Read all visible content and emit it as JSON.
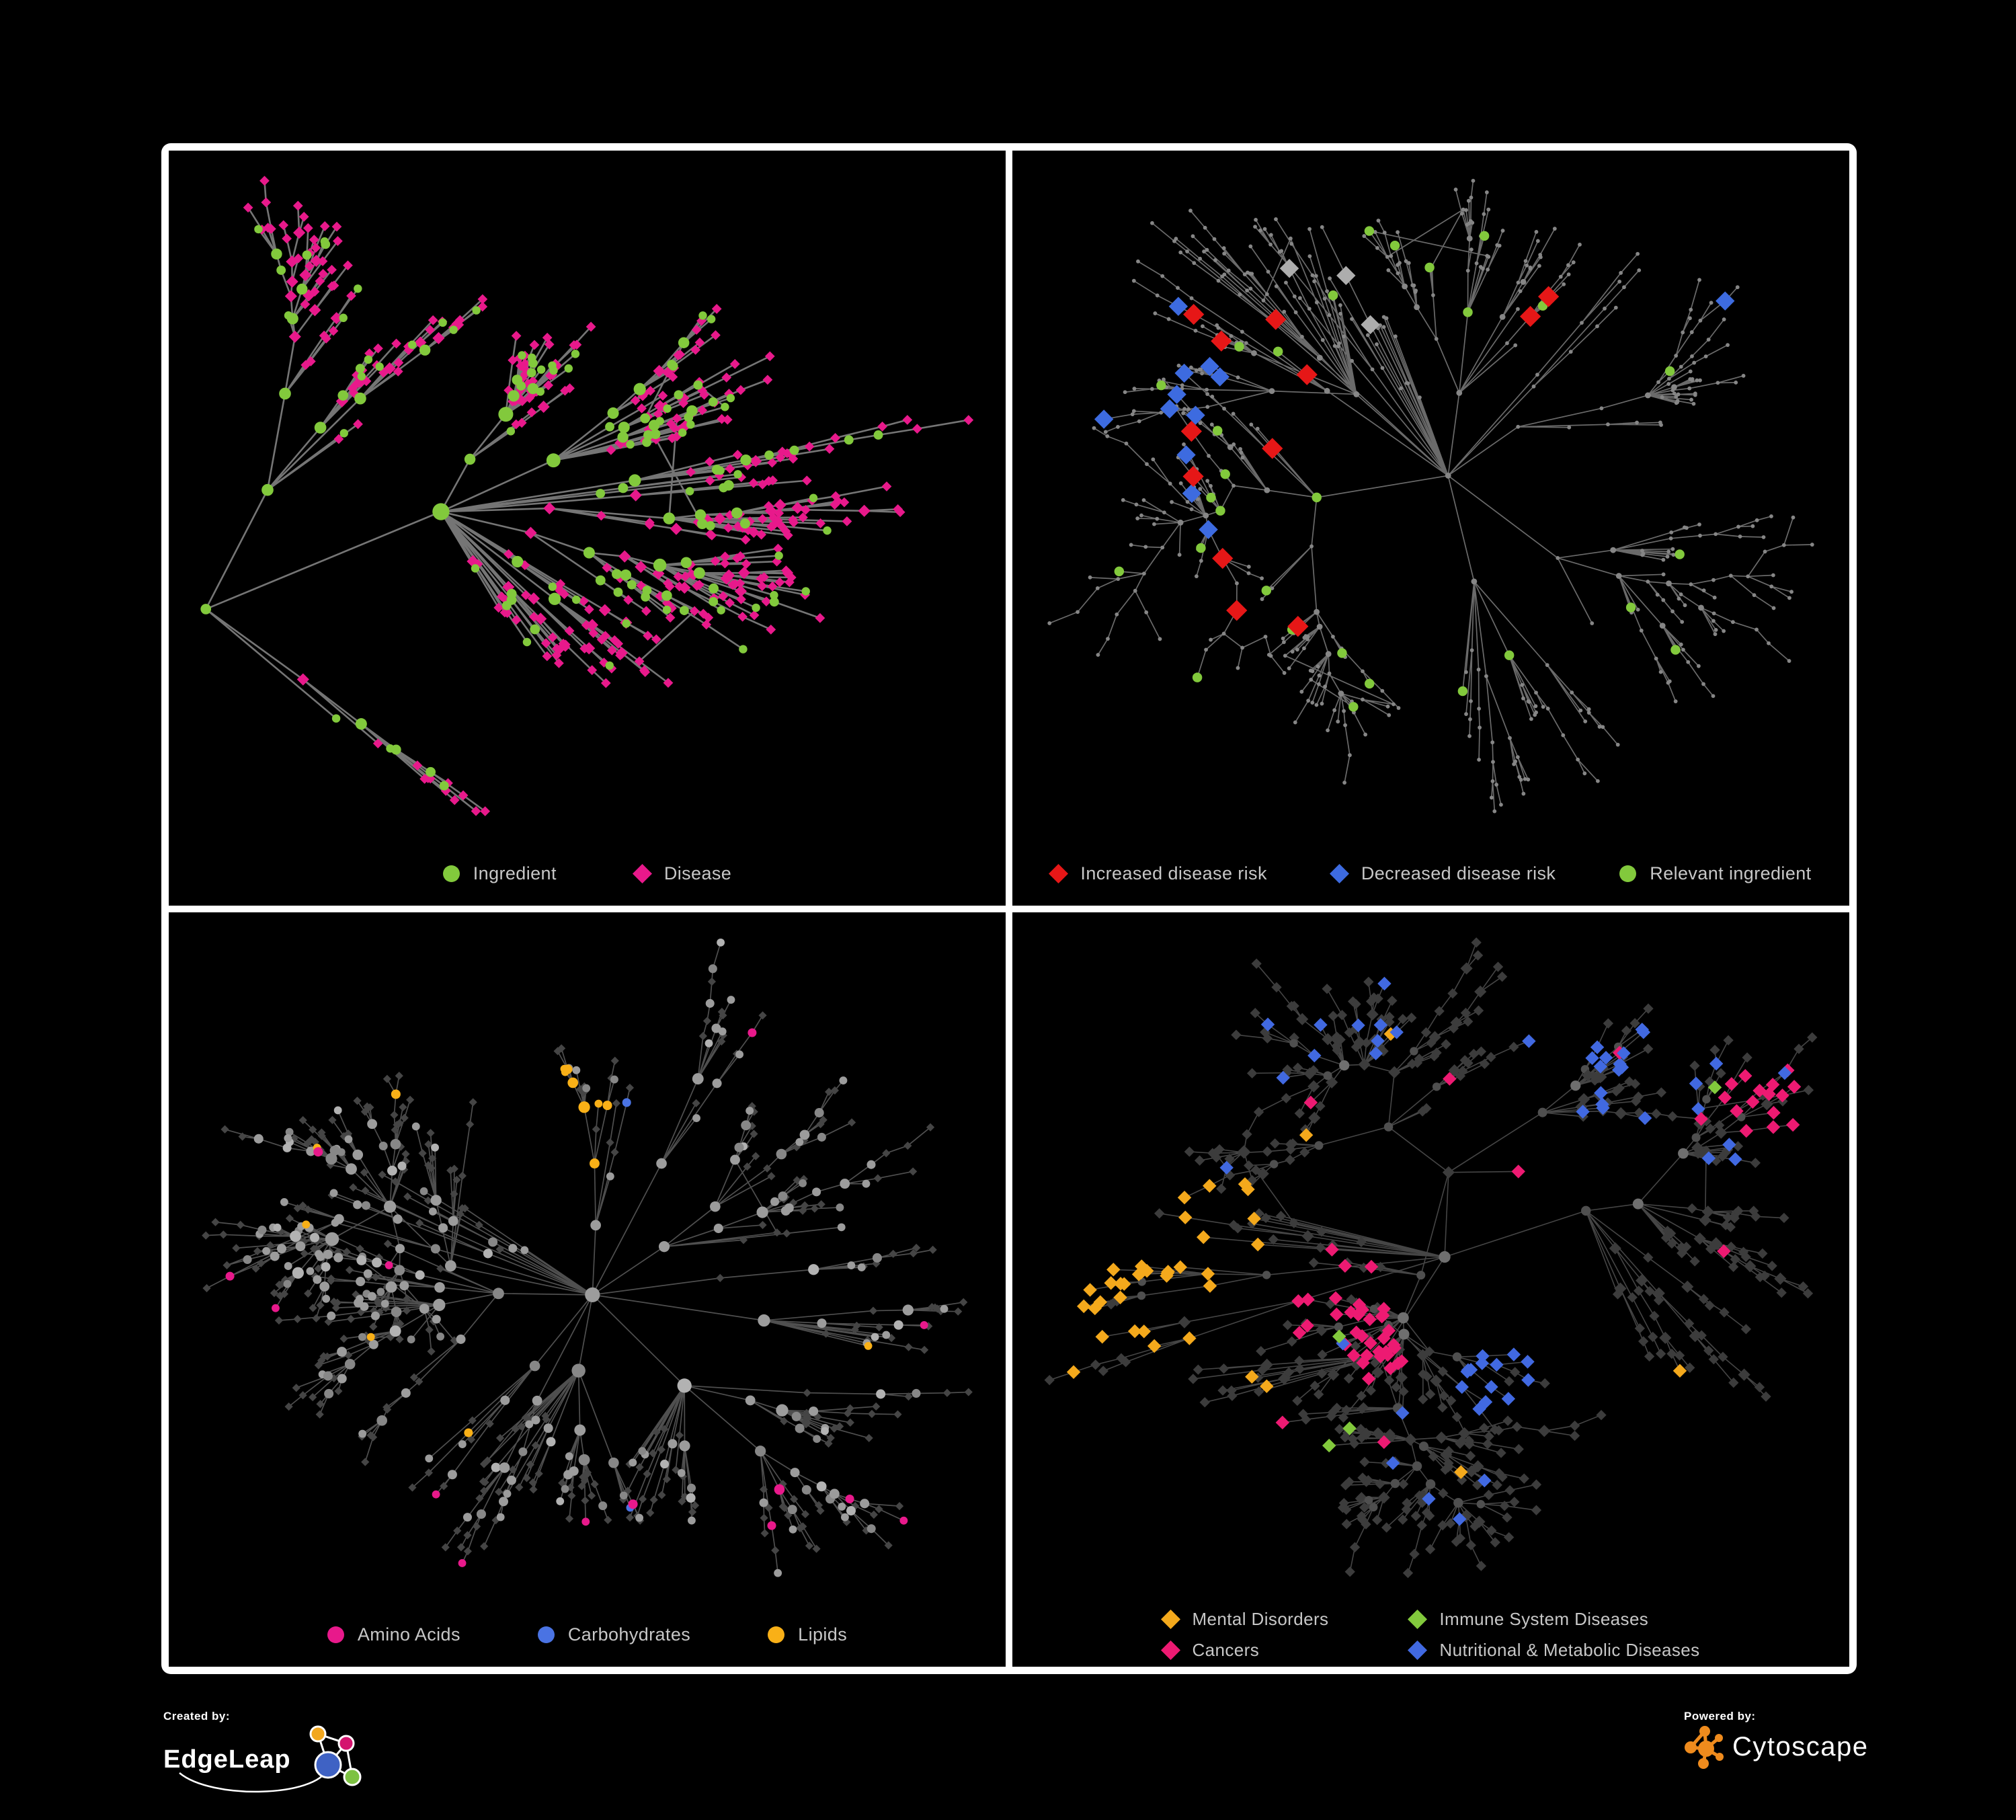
{
  "poster": {
    "background": "#000000",
    "frame_color": "#ffffff"
  },
  "palette": {
    "green": "#82C93C",
    "pink": "#E8198B",
    "red": "#E61717",
    "blue": "#3D6BE0",
    "gray_diamond": "#ADADAD",
    "base_dot": "#868686",
    "lipid_orange": "#F9B017",
    "carb_blue": "#4A73E3",
    "amino_pink": "#E8198B",
    "dark_diamond": "#454545",
    "cat_dark": "#3C3C3C",
    "cat_orange": "#F4A91C",
    "cat_pink": "#ED1A72",
    "cat_blue": "#4169E1",
    "cat_green": "#82C93C",
    "ing_gray": "#9C9C9C",
    "logo_orange": "#EF8B1D",
    "legend_text": "#C7C7C7"
  },
  "panels": [
    {
      "id": "node-types",
      "legend": [
        {
          "label": "Ingredient",
          "shape": "circle",
          "color": "#82C93C"
        },
        {
          "label": "Disease",
          "shape": "diamond",
          "color": "#E8198B"
        }
      ],
      "network": {
        "style": "types",
        "seed": 7,
        "nodes": 520,
        "alpha": 1.18,
        "chainP": 0.3,
        "extra": 0.05,
        "edge": {
          "color": "#7B7B7B",
          "width": 2.6,
          "opacity": 0.95
        }
      }
    },
    {
      "id": "disease-risk",
      "legend": [
        {
          "label": "Increased disease risk",
          "shape": "diamond",
          "color": "#E61717"
        },
        {
          "label": "Decreased disease risk",
          "shape": "diamond",
          "color": "#3D6BE0"
        },
        {
          "label": "Relevant ingredient",
          "shape": "circle",
          "color": "#82C93C"
        }
      ],
      "network": {
        "style": "risk",
        "seed": 15,
        "nodes": 610,
        "alpha": 1.15,
        "chainP": 0.34,
        "extra": 0.05,
        "edge": {
          "color": "#767676",
          "width": 1.7,
          "opacity": 0.9
        }
      }
    },
    {
      "id": "compound-classes",
      "legend": [
        {
          "label": "Amino Acids",
          "shape": "circle",
          "color": "#E8198B"
        },
        {
          "label": "Carbohydrates",
          "shape": "circle",
          "color": "#4A73E3"
        },
        {
          "label": "Lipids",
          "shape": "circle",
          "color": "#F9B017"
        }
      ],
      "network": {
        "style": "classes",
        "seed": 29,
        "nodes": 630,
        "alpha": 1.2,
        "chainP": 0.3,
        "extra": 0.06,
        "edge": {
          "color": "#8F8F8F",
          "width": 1.7,
          "opacity": 0.55
        }
      }
    },
    {
      "id": "disease-categories",
      "legend": [
        {
          "label": "Mental Disorders",
          "shape": "diamond",
          "color": "#F4A91C"
        },
        {
          "label": "Immune System Diseases",
          "shape": "diamond",
          "color": "#82C93C"
        },
        {
          "label": "Cancers",
          "shape": "diamond",
          "color": "#ED1A72"
        },
        {
          "label": "Nutritional & Metabolic Diseases",
          "shape": "diamond",
          "color": "#4169E1"
        }
      ],
      "network": {
        "style": "categories",
        "seed": 43,
        "nodes": 660,
        "alpha": 1.2,
        "chainP": 0.32,
        "extra": 0.06,
        "edge": {
          "color": "#8A8A8A",
          "width": 1.6,
          "opacity": 0.5
        }
      }
    }
  ],
  "footer": {
    "created": {
      "label": "Created by:",
      "brand": "EdgeLeap"
    },
    "powered": {
      "label": "Powered by:",
      "brand": "Cytoscape"
    }
  }
}
